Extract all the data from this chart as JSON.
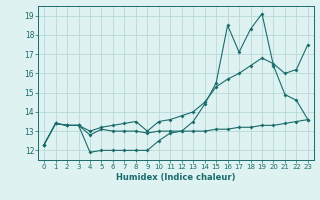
{
  "xlabel": "Humidex (Indice chaleur)",
  "bg_color": "#dff2f2",
  "grid_color": "#b8d8d8",
  "line_color": "#1a6b6b",
  "x_values": [
    0,
    1,
    2,
    3,
    4,
    5,
    6,
    7,
    8,
    9,
    10,
    11,
    12,
    13,
    14,
    15,
    16,
    17,
    18,
    19,
    20,
    21,
    22,
    23
  ],
  "line1": [
    12.3,
    13.4,
    13.3,
    13.3,
    11.9,
    12.0,
    12.0,
    12.0,
    12.0,
    12.0,
    12.5,
    12.9,
    13.0,
    13.5,
    14.4,
    15.5,
    18.5,
    17.1,
    18.3,
    19.1,
    16.4,
    14.9,
    14.6,
    13.6
  ],
  "line2": [
    12.3,
    13.4,
    13.3,
    13.3,
    12.8,
    13.1,
    13.0,
    13.0,
    13.0,
    12.9,
    13.0,
    13.0,
    13.0,
    13.0,
    13.0,
    13.1,
    13.1,
    13.2,
    13.2,
    13.3,
    13.3,
    13.4,
    13.5,
    13.6
  ],
  "line3": [
    12.3,
    13.4,
    13.3,
    13.3,
    13.0,
    13.2,
    13.3,
    13.4,
    13.5,
    13.0,
    13.5,
    13.6,
    13.8,
    14.0,
    14.5,
    15.3,
    15.7,
    16.0,
    16.4,
    16.8,
    16.5,
    16.0,
    16.2,
    17.5
  ],
  "ylim": [
    11.5,
    19.5
  ],
  "yticks": [
    12,
    13,
    14,
    15,
    16,
    17,
    18,
    19
  ]
}
